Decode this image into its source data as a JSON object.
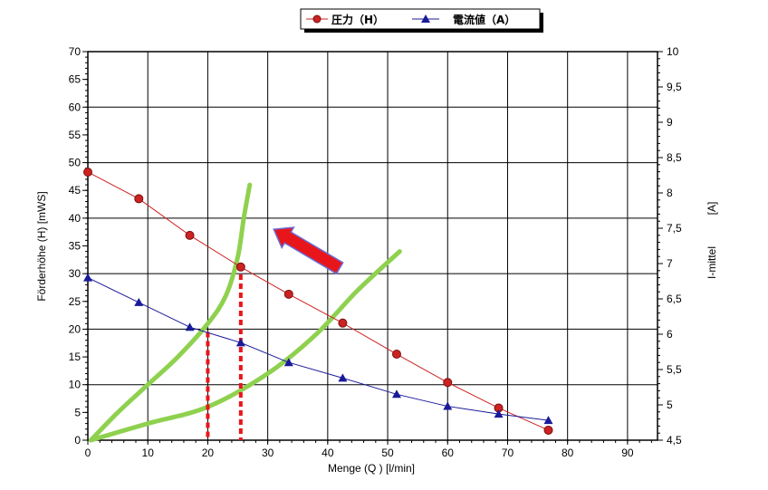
{
  "chart_data": {
    "type": "line",
    "xlabel": "Menge (Q ) [l/min]",
    "ylabel_left": "Förderhöhe (H)   [mWS]",
    "ylabel_right": "I-mittel",
    "ylabel_right_unit": "[A]",
    "xlim": [
      0,
      95
    ],
    "ylim_left": [
      0,
      70
    ],
    "ylim_right": [
      4.5,
      10
    ],
    "x_ticks": [
      "0",
      "10",
      "20",
      "30",
      "40",
      "50",
      "60",
      "70",
      "80",
      "90"
    ],
    "y_left_ticks": [
      "0",
      "5",
      "10",
      "15",
      "20",
      "25",
      "30",
      "35",
      "40",
      "45",
      "50",
      "55",
      "60",
      "65",
      "70"
    ],
    "y_right_ticks": [
      "4,5",
      "5",
      "5,5",
      "6",
      "6,5",
      "7",
      "7,5",
      "8",
      "8,5",
      "9",
      "9,5",
      "10"
    ],
    "grid": true,
    "legend_position": "top",
    "series": [
      {
        "name": "圧力（H）",
        "axis": "left",
        "marker": "circle",
        "color": "#cc2222",
        "x": [
          0,
          8.5,
          17,
          25.5,
          33.5,
          42.5,
          51.5,
          60,
          68.5,
          76.8
        ],
        "y": [
          48.3,
          43.5,
          36.9,
          31.2,
          26.3,
          21.1,
          15.5,
          10.4,
          5.8,
          1.8
        ]
      },
      {
        "name": "電流値（A）",
        "axis": "right",
        "marker": "triangle",
        "color": "#1a1a99",
        "x": [
          0,
          8.5,
          17,
          25.5,
          33.5,
          42.5,
          51.5,
          60,
          68.5,
          76.8
        ],
        "y": [
          6.8,
          6.45,
          6.1,
          5.88,
          5.6,
          5.38,
          5.15,
          4.98,
          4.87,
          4.78
        ]
      }
    ],
    "annotations": {
      "system_curves": [
        {
          "color": "#8fd14f",
          "x": [
            0.5,
            5,
            10,
            15,
            20,
            23,
            25,
            26,
            27
          ],
          "y": [
            0,
            5,
            10,
            15,
            21,
            26,
            33,
            40,
            46
          ]
        },
        {
          "color": "#8fd14f",
          "x": [
            0.5,
            10,
            20,
            30,
            38,
            45,
            52
          ],
          "y": [
            0,
            3,
            6,
            12,
            19,
            27,
            34
          ]
        }
      ],
      "intersection_markers": [
        {
          "color": "#e8161a",
          "x": 20,
          "y": 19.5
        },
        {
          "color": "#e8161a",
          "x": 25.5,
          "y": 31.5
        }
      ],
      "arrow": {
        "color": "#e8161a",
        "from": [
          42,
          31
        ],
        "to": [
          31,
          38
        ]
      }
    }
  }
}
